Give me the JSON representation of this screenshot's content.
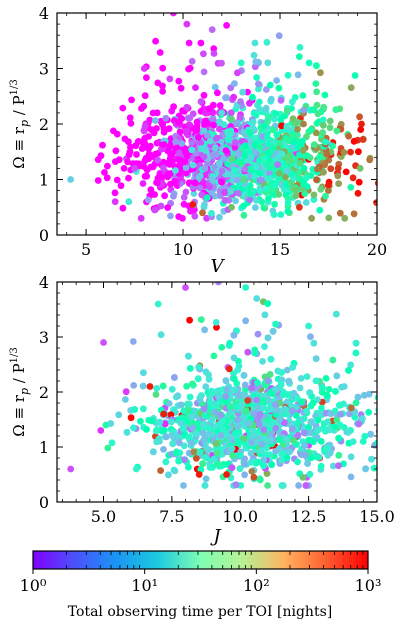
{
  "figure": {
    "colormap": "rainbow",
    "colorbar": {
      "label": "Total observing time per TOI [nights]",
      "scale": "log",
      "range": [
        1,
        1000
      ],
      "tick_labels": [
        "10⁰",
        "10¹",
        "10²",
        "10³"
      ]
    }
  },
  "chart_data": [
    {
      "type": "scatter",
      "xlabel": "V",
      "ylabel_prefix": "Ω ≡ r",
      "ylabel_sub": "p",
      "ylabel_mid": " / P",
      "ylabel_sup": "1/3",
      "xlim": [
        3.5,
        20
      ],
      "ylim": [
        0,
        4
      ],
      "xticks": [
        5,
        10,
        15,
        20
      ],
      "xtick_labels": [
        "5",
        "10",
        "15",
        "20"
      ],
      "yticks": [
        0,
        1,
        2,
        3,
        4
      ],
      "ytick_labels": [
        "0",
        "1",
        "2",
        "3",
        "4"
      ],
      "points_note": "~1500 points; color encodes log10(total observing time)",
      "points": [
        [
          4.2,
          1.0,
          0.9
        ],
        [
          6.5,
          0.6,
          0.2
        ],
        [
          7.2,
          0.6,
          1.1
        ],
        [
          7.5,
          1.2,
          0.3
        ],
        [
          8.0,
          3.0,
          0.2
        ],
        [
          9.5,
          4.0,
          0.1
        ],
        [
          10.2,
          3.8,
          0.2
        ],
        [
          11.5,
          3.7,
          0.4
        ],
        [
          12.0,
          2.2,
          1.0
        ],
        [
          13.0,
          3.1,
          1.3
        ],
        [
          14.5,
          2.7,
          1.5
        ],
        [
          16.5,
          3.1,
          1.4
        ],
        [
          19.2,
          2.0,
          2.9
        ],
        [
          18.0,
          1.2,
          2.8
        ],
        [
          17.5,
          0.9,
          2.9
        ],
        [
          16.0,
          0.5,
          2.8
        ],
        [
          11.0,
          0.4,
          2.6
        ],
        [
          12.5,
          0.5,
          2.2
        ],
        [
          10.5,
          0.55,
          2.9
        ],
        [
          9.5,
          0.7,
          0.6
        ]
      ]
    },
    {
      "type": "scatter",
      "xlabel": "J",
      "ylabel_prefix": "Ω ≡ r",
      "ylabel_sub": "p",
      "ylabel_mid": " / P",
      "ylabel_sup": "1/3",
      "xlim": [
        3.3,
        15
      ],
      "ylim": [
        0,
        4
      ],
      "xticks": [
        5.0,
        7.5,
        10.0,
        12.5,
        15.0
      ],
      "xtick_labels": [
        "5.0",
        "7.5",
        "10.0",
        "12.5",
        "15.0"
      ],
      "yticks": [
        0,
        1,
        2,
        3,
        4
      ],
      "ytick_labels": [
        "0",
        "1",
        "2",
        "3",
        "4"
      ],
      "points_note": "~1500 points; color encodes log10(total observing time)",
      "points": [
        [
          3.8,
          0.6,
          0.3
        ],
        [
          4.9,
          1.3,
          0.2
        ],
        [
          5.0,
          2.9,
          0.3
        ],
        [
          6.2,
          0.6,
          1.2
        ],
        [
          7.0,
          3.6,
          1.2
        ],
        [
          8.0,
          3.9,
          0.3
        ],
        [
          9.2,
          4.0,
          0.5
        ],
        [
          10.2,
          3.9,
          1.3
        ],
        [
          10.6,
          3.7,
          1.0
        ],
        [
          12.5,
          3.2,
          1.2
        ],
        [
          13.8,
          2.1,
          1.0
        ],
        [
          14.5,
          1.1,
          1.3
        ],
        [
          8.5,
          0.5,
          2.9
        ],
        [
          9.5,
          0.5,
          2.9
        ],
        [
          10.5,
          0.45,
          2.7
        ],
        [
          7.2,
          1.6,
          2.9
        ],
        [
          6.7,
          2.1,
          2.9
        ],
        [
          11.0,
          0.3,
          1.9
        ]
      ]
    }
  ]
}
